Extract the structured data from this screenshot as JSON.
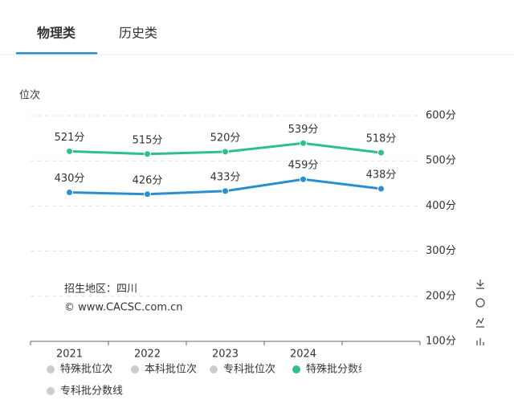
{
  "tabs": [
    "物理类",
    "历史类"
  ],
  "chart_data": {
    "type": "line",
    "y_label": "位次",
    "annotations": [
      "招生地区：四川",
      "© www.CACSC.com.cn"
    ],
    "categories": [
      "2021",
      "2022",
      "2023",
      "2024",
      null
    ],
    "series": [
      {
        "color": "#2fbf8a",
        "values": [
          521,
          515,
          520,
          539,
          518
        ],
        "value_labels": [
          "521分",
          "515分",
          "520分",
          "539分",
          "518分"
        ]
      },
      {
        "color": "#2a8fd0",
        "values": [
          430,
          426,
          433,
          459,
          438
        ],
        "value_labels": [
          "430分",
          "426分",
          "433分",
          "459分",
          "438分"
        ]
      }
    ],
    "legend": [
      {
        "name": "特殊批位次",
        "color": "#cccccc"
      },
      {
        "name": "本科批位次",
        "color": "#cccccc"
      },
      {
        "name": "专科批位次",
        "color": "#cccccc"
      },
      {
        "name": "特殊批分数线",
        "color": "#2fbf8a"
      },
      {
        "name": "专科批分数线",
        "color": "#cccccc"
      }
    ],
    "ylim": [
      100,
      600
    ],
    "yticks": [
      {
        "value": 100,
        "label": "100分"
      },
      {
        "value": 200,
        "label": "200分"
      },
      {
        "value": 300,
        "label": "300分"
      },
      {
        "value": 400,
        "label": "400分"
      },
      {
        "value": 500,
        "label": "500分"
      },
      {
        "value": 600,
        "label": "600分"
      }
    ],
    "grid": true
  }
}
